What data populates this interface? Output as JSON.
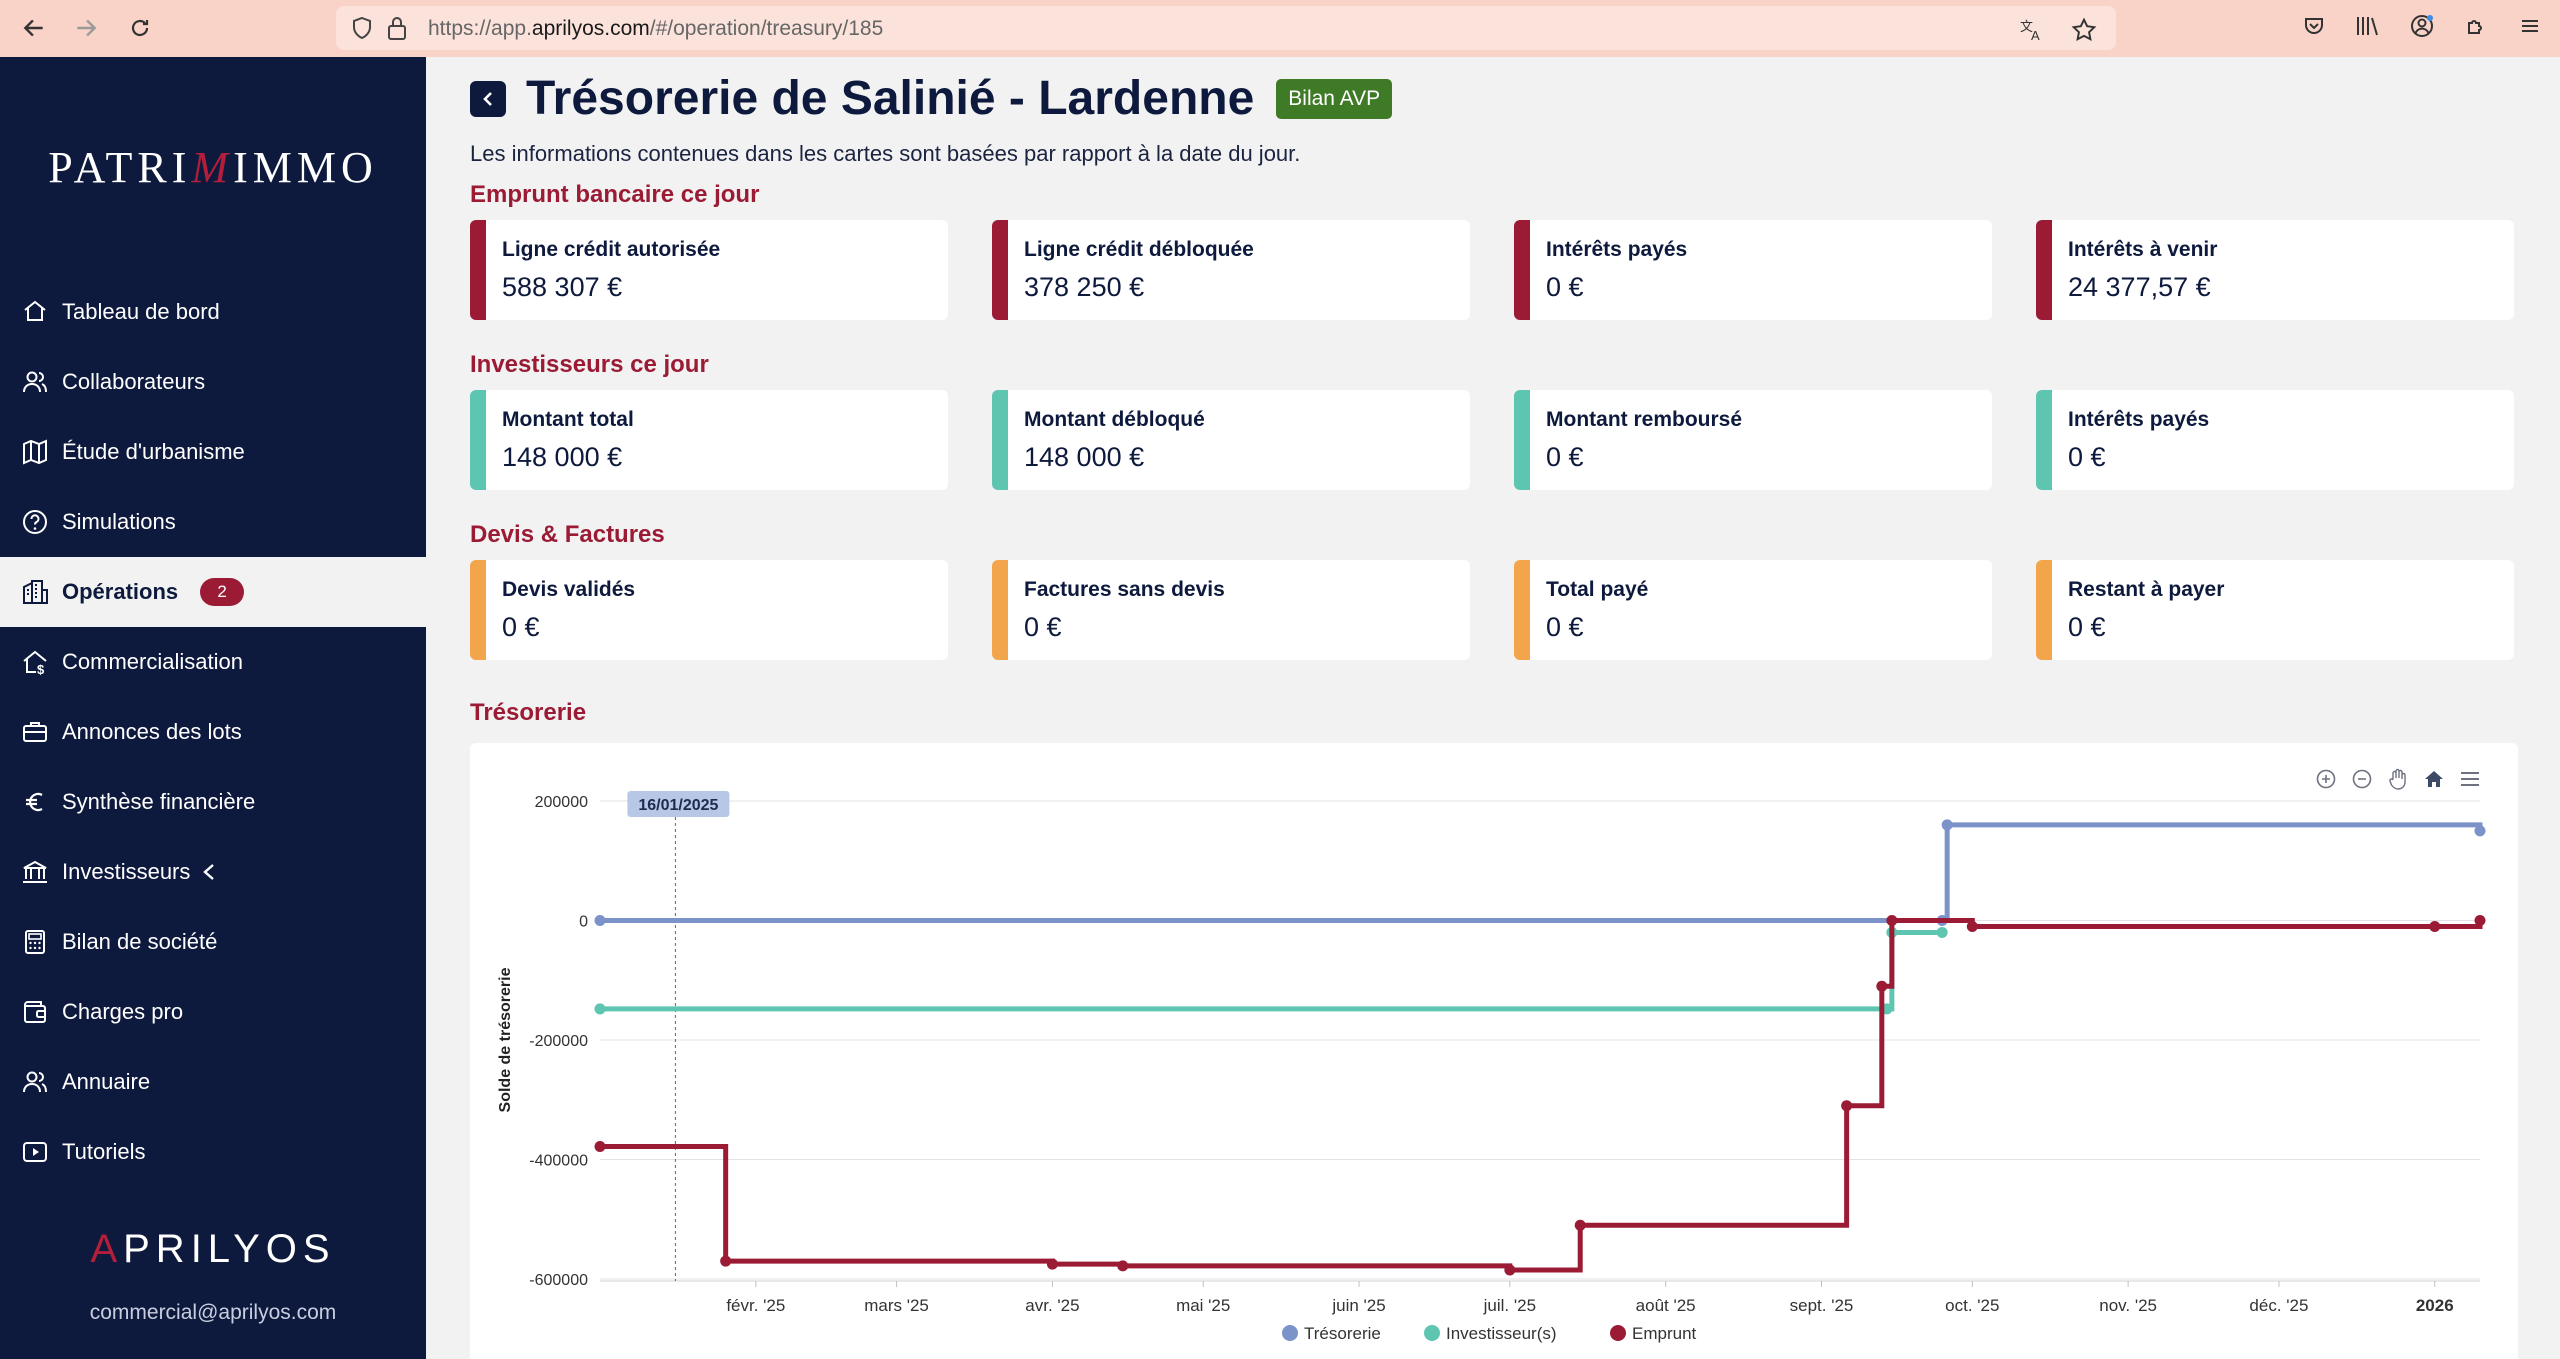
{
  "browser": {
    "url_prefix": "https://app.",
    "url_domain": "aprilyos.com",
    "url_path": "/#/operation/treasury/185"
  },
  "sidebar": {
    "logo": "PATRIMMO",
    "items": [
      {
        "label": "Tableau de bord",
        "icon": "home-icon"
      },
      {
        "label": "Collaborateurs",
        "icon": "users-icon"
      },
      {
        "label": "Étude d'urbanisme",
        "icon": "map-icon"
      },
      {
        "label": "Simulations",
        "icon": "question-icon"
      },
      {
        "label": "Opérations",
        "icon": "building-icon",
        "badge": "2",
        "active": true
      },
      {
        "label": "Commercialisation",
        "icon": "house-dollar-icon"
      },
      {
        "label": "Annonces des lots",
        "icon": "briefcase-icon"
      },
      {
        "label": "Synthèse financière",
        "icon": "euro-icon"
      },
      {
        "label": "Investisseurs",
        "icon": "bank-icon"
      },
      {
        "label": "Bilan de société",
        "icon": "calculator-icon"
      },
      {
        "label": "Charges pro",
        "icon": "wallet-icon"
      },
      {
        "label": "Annuaire",
        "icon": "contacts-icon"
      },
      {
        "label": "Tutoriels",
        "icon": "play-icon"
      }
    ],
    "footer_logo": "APRILYOS",
    "email": "commercial@aprilyos.com"
  },
  "header": {
    "title": "Trésorerie de Salinié - Lardenne",
    "status": "Bilan AVP",
    "subtitle": "Les informations contenues dans les cartes sont basées par rapport à la date du jour."
  },
  "colors": {
    "emprunt": "#9b1b35",
    "investisseurs": "#5ec6b0",
    "devis": "#f2a54a",
    "tresorerie": "#7b93c9"
  },
  "sections": [
    {
      "title": "Emprunt bancaire ce jour",
      "cards": [
        {
          "label": "Ligne crédit autorisée",
          "value": "588 307 €"
        },
        {
          "label": "Ligne crédit débloquée",
          "value": "378 250 €"
        },
        {
          "label": "Intérêts payés",
          "value": "0 €"
        },
        {
          "label": "Intérêts à venir",
          "value": "24 377,57 €"
        }
      ]
    },
    {
      "title": "Investisseurs ce jour",
      "cards": [
        {
          "label": "Montant total",
          "value": "148 000 €"
        },
        {
          "label": "Montant débloqué",
          "value": "148 000 €"
        },
        {
          "label": "Montant remboursé",
          "value": "0 €"
        },
        {
          "label": "Intérêts payés",
          "value": "0 €"
        }
      ]
    },
    {
      "title": "Devis & Factures",
      "cards": [
        {
          "label": "Devis validés",
          "value": "0 €"
        },
        {
          "label": "Factures sans devis",
          "value": "0 €"
        },
        {
          "label": "Total payé",
          "value": "0 €"
        },
        {
          "label": "Restant à payer",
          "value": "0 €"
        }
      ]
    }
  ],
  "treasury_title": "Trésorerie",
  "chart_data": {
    "type": "line",
    "step": true,
    "ylabel": "Solde de trésorerie",
    "ylim": [
      -600000,
      200000
    ],
    "yticks": [
      200000,
      0,
      -200000,
      -400000,
      -600000
    ],
    "ytick_labels": [
      "200000",
      "0",
      "-200000",
      "-400000",
      "-600000"
    ],
    "x_start": "2025-01-01",
    "x_end": "2026-01-10",
    "xticks": [
      {
        "date": "2025-02-01",
        "label": "févr. '25"
      },
      {
        "date": "2025-03-01",
        "label": "mars '25"
      },
      {
        "date": "2025-04-01",
        "label": "avr. '25"
      },
      {
        "date": "2025-05-01",
        "label": "mai '25"
      },
      {
        "date": "2025-06-01",
        "label": "juin '25"
      },
      {
        "date": "2025-07-01",
        "label": "juil. '25"
      },
      {
        "date": "2025-08-01",
        "label": "août '25"
      },
      {
        "date": "2025-09-01",
        "label": "sept. '25"
      },
      {
        "date": "2025-10-01",
        "label": "oct. '25"
      },
      {
        "date": "2025-11-01",
        "label": "nov. '25"
      },
      {
        "date": "2025-12-01",
        "label": "déc. '25"
      },
      {
        "date": "2026-01-01",
        "label": "2026",
        "bold": true
      }
    ],
    "crosshair": {
      "date": "2025-01-16",
      "label": "16/01/2025"
    },
    "legend_position": "bottom",
    "series": [
      {
        "name": "Trésorerie",
        "color": "#7b93c9",
        "points": [
          {
            "x": "2025-01-01",
            "y": 0
          },
          {
            "x": "2025-09-25",
            "y": 0
          },
          {
            "x": "2025-09-26",
            "y": 160000
          },
          {
            "x": "2026-01-10",
            "y": 150000
          }
        ]
      },
      {
        "name": "Investisseur(s)",
        "color": "#5ec6b0",
        "points": [
          {
            "x": "2025-01-01",
            "y": -148000
          },
          {
            "x": "2025-09-14",
            "y": -148000
          },
          {
            "x": "2025-09-15",
            "y": -20000
          },
          {
            "x": "2025-09-25",
            "y": -20000
          }
        ]
      },
      {
        "name": "Emprunt",
        "color": "#9b1b35",
        "points": [
          {
            "x": "2025-01-01",
            "y": -378250
          },
          {
            "x": "2025-01-26",
            "y": -570000
          },
          {
            "x": "2025-04-01",
            "y": -575000
          },
          {
            "x": "2025-04-15",
            "y": -578000
          },
          {
            "x": "2025-07-01",
            "y": -585000
          },
          {
            "x": "2025-07-15",
            "y": -510000
          },
          {
            "x": "2025-09-06",
            "y": -310000
          },
          {
            "x": "2025-09-13",
            "y": -110000
          },
          {
            "x": "2025-09-15",
            "y": 0
          },
          {
            "x": "2025-10-01",
            "y": -10000
          },
          {
            "x": "2026-01-01",
            "y": -10000
          },
          {
            "x": "2026-01-10",
            "y": 0
          }
        ]
      }
    ]
  }
}
